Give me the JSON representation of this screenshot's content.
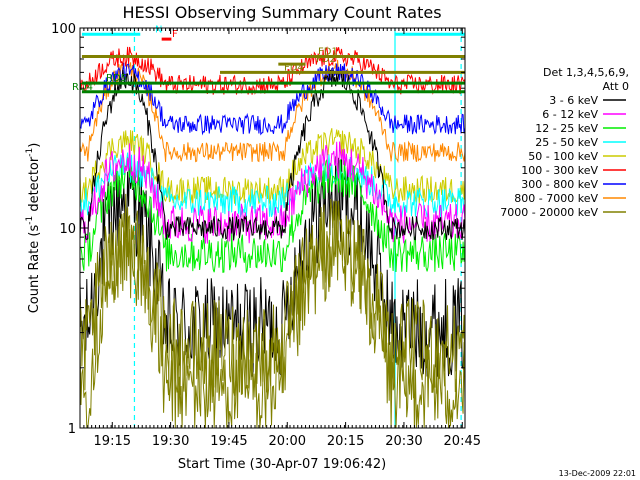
{
  "chart_data": {
    "type": "line",
    "title": "HESSI Observing Summary Count Rates",
    "xlabel": "Start Time (30-Apr-07 19:06:42)",
    "ylabel": "Count Rate (s",
    "ylabel_sup": "-1",
    "ylabel_tail": " detector",
    "ylabel_end": ")",
    "y_scale": "log",
    "ylim": [
      1,
      100
    ],
    "xlim_minutes": [
      0,
      99
    ],
    "x_ticks": [
      {
        "label": "19:15",
        "minute": 8.3
      },
      {
        "label": "19:30",
        "minute": 23.3
      },
      {
        "label": "19:45",
        "minute": 38.3
      },
      {
        "label": "20:00",
        "minute": 53.3
      },
      {
        "label": "20:15",
        "minute": 68.3
      },
      {
        "label": "20:30",
        "minute": 83.3
      },
      {
        "label": "20:45",
        "minute": 98.3
      }
    ],
    "y_ticks": [
      {
        "label": "1",
        "value": 1
      },
      {
        "label": "10",
        "value": 10
      },
      {
        "label": "100",
        "value": 100
      }
    ],
    "legend": {
      "title1": "Det 1,3,4,5,6,9,",
      "title2": "Att 0",
      "placement": "right"
    },
    "series": [
      {
        "name": "3 - 6 keV",
        "color": "#000000",
        "base": 10.0,
        "peak": 56.0,
        "noise": 0.06
      },
      {
        "name": "6 - 12 keV",
        "color": "#ff00ff",
        "base": 10.5,
        "peak": 22.0,
        "noise": 0.1
      },
      {
        "name": "12 - 25 keV",
        "color": "#00ee00",
        "base": 7.5,
        "peak": 18.0,
        "noise": 0.1
      },
      {
        "name": "25 - 50 keV",
        "color": "#00ffff",
        "base": 13.5,
        "peak": 20.0,
        "noise": 0.08
      },
      {
        "name": "50 - 100 keV",
        "color": "#cccc00",
        "base": 15.5,
        "peak": 27.0,
        "noise": 0.07
      },
      {
        "name": "100 - 300 keV",
        "color": "#ff0000",
        "base": 52.0,
        "peak": 72.0,
        "noise": 0.05
      },
      {
        "name": "300 - 800 keV",
        "color": "#0000ff",
        "base": 33.0,
        "peak": 60.0,
        "noise": 0.05
      },
      {
        "name": "800 - 7000 keV",
        "color": "#ff8800",
        "base": 24.0,
        "peak": 62.0,
        "noise": 0.05
      },
      {
        "name": "7000 - 20000 keV",
        "color": "#808000",
        "base": 2.5,
        "peak": 8.5,
        "noise": 0.25
      }
    ],
    "extra_traces": [
      {
        "name": "bottom-dense",
        "color": "#000000",
        "base": 3.2,
        "peak": 14.0
      },
      {
        "name": "bottom-olive",
        "color": "#808000",
        "base": 1.6,
        "peak": 8.0
      }
    ],
    "passes": [
      {
        "start": 2.0,
        "end": 22.0,
        "peak": 12.0
      },
      {
        "start": 53.0,
        "end": 80.0,
        "peak": 66.0
      }
    ],
    "flags": [
      {
        "label": "N",
        "color": "#00ffff",
        "value": 93,
        "start": 0.5,
        "end": 15.5
      },
      {
        "label": "N",
        "color": "#00ffff",
        "value": 93,
        "start": 81.0,
        "end": 99.0
      },
      {
        "label": "F",
        "color": "#ff0000",
        "value": 88,
        "start": 21.0,
        "end": 23.5
      },
      {
        "label": "FD1",
        "color": "#808000",
        "value": 72,
        "start": 0.5,
        "end": 99.0
      },
      {
        "label": "FD2",
        "color": "#808000",
        "value": 66,
        "start": 51.0,
        "end": 58.0
      },
      {
        "label": "FD4",
        "color": "#808000",
        "value": 60,
        "start": 36.0,
        "end": 99.0
      },
      {
        "label": "RD5",
        "color": "#008000",
        "value": 53,
        "start": 0.5,
        "end": 99.0
      },
      {
        "label": "RD4",
        "color": "#008000",
        "value": 48,
        "start": 0.5,
        "end": 99.0
      }
    ],
    "vlines": [
      {
        "minute": 14.0,
        "color": "#00ffff",
        "dashed": true
      },
      {
        "minute": 81.0,
        "color": "#00ffff",
        "dashed": false
      },
      {
        "minute": 98.0,
        "color": "#00ffff",
        "dashed": true
      }
    ],
    "footer_date": "13-Dec-2009 22:01"
  }
}
